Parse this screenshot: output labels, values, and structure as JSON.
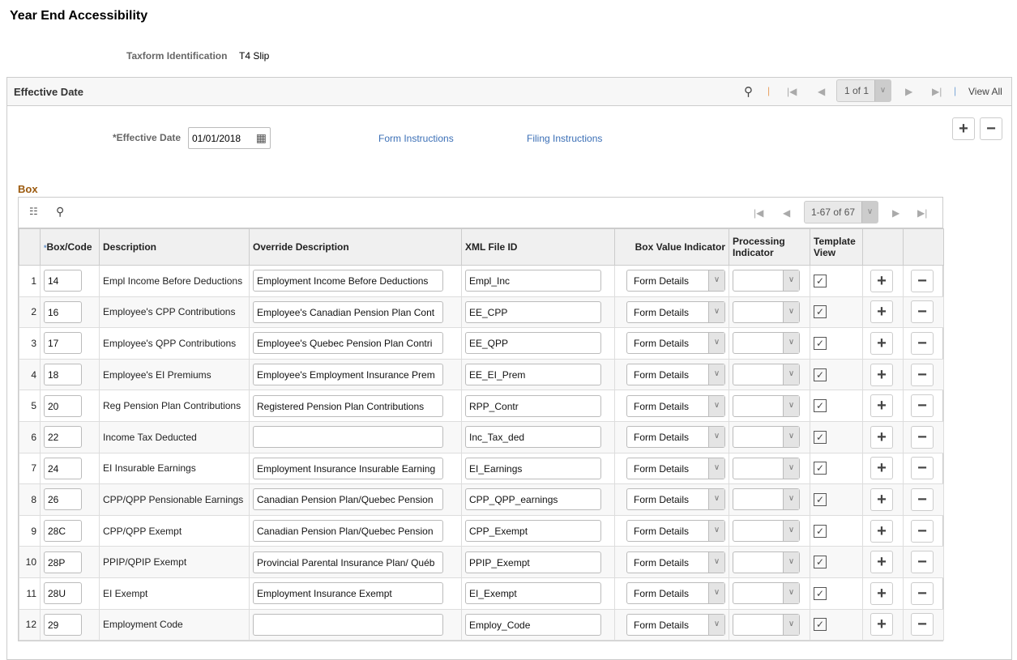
{
  "page": {
    "title": "Year End Accessibility",
    "taxform_label": "Taxform Identification",
    "taxform_value": "T4 Slip"
  },
  "effdate": {
    "header": "Effective Date",
    "pager": "1 of 1",
    "view_all": "View All",
    "label": "*Effective Date",
    "value": "01/01/2018",
    "form_instructions": "Form Instructions",
    "filing_instructions": "Filing Instructions"
  },
  "box": {
    "title": "Box",
    "pager": "1-67 of 67",
    "columns": [
      "*",
      "Box/Code",
      "Description",
      "Override Description",
      "XML File ID",
      "Box Value Indicator",
      "Processing Indicator",
      "Template View"
    ],
    "rows": [
      {
        "n": "1",
        "code": "14",
        "desc": "Empl Income Before Deductions",
        "override": "Employment Income Before Deductions",
        "xml": "Empl_Inc",
        "bvi": "Form Details",
        "proc": "",
        "tv": true
      },
      {
        "n": "2",
        "code": "16",
        "desc": "Employee's CPP Contributions",
        "override": "Employee's Canadian Pension Plan Cont",
        "xml": "EE_CPP",
        "bvi": "Form Details",
        "proc": "",
        "tv": true
      },
      {
        "n": "3",
        "code": "17",
        "desc": "Employee's QPP Contributions",
        "override": "Employee's Quebec Pension Plan  Contri",
        "xml": "EE_QPP",
        "bvi": "Form Details",
        "proc": "",
        "tv": true
      },
      {
        "n": "4",
        "code": "18",
        "desc": "Employee's EI Premiums",
        "override": "Employee's Employment Insurance Prem",
        "xml": "EE_EI_Prem",
        "bvi": "Form Details",
        "proc": "",
        "tv": true
      },
      {
        "n": "5",
        "code": "20",
        "desc": "Reg Pension Plan Contributions",
        "override": "Registered Pension Plan Contributions",
        "xml": "RPP_Contr",
        "bvi": "Form Details",
        "proc": "",
        "tv": true
      },
      {
        "n": "6",
        "code": "22",
        "desc": "Income Tax Deducted",
        "override": "",
        "xml": "Inc_Tax_ded",
        "bvi": "Form Details",
        "proc": "",
        "tv": true
      },
      {
        "n": "7",
        "code": "24",
        "desc": "EI Insurable Earnings",
        "override": "Employment Insurance Insurable Earning",
        "xml": "EI_Earnings",
        "bvi": "Form Details",
        "proc": "",
        "tv": true
      },
      {
        "n": "8",
        "code": "26",
        "desc": "CPP/QPP Pensionable Earnings",
        "override": "Canadian Pension Plan/Quebec Pension",
        "xml": "CPP_QPP_earnings",
        "bvi": "Form Details",
        "proc": "",
        "tv": true
      },
      {
        "n": "9",
        "code": "28C",
        "desc": "CPP/QPP Exempt",
        "override": "Canadian Pension Plan/Quebec Pension",
        "xml": "CPP_Exempt",
        "bvi": "Form Details",
        "proc": "",
        "tv": true
      },
      {
        "n": "10",
        "code": "28P",
        "desc": "PPIP/QPIP Exempt",
        "override": "Provincial  Parental Insurance Plan/ Québ",
        "xml": "PPIP_Exempt",
        "bvi": "Form Details",
        "proc": "",
        "tv": true
      },
      {
        "n": "11",
        "code": "28U",
        "desc": "EI Exempt",
        "override": "Employment Insurance Exempt",
        "xml": "EI_Exempt",
        "bvi": "Form Details",
        "proc": "",
        "tv": true
      },
      {
        "n": "12",
        "code": "29",
        "desc": "Employment Code",
        "override": "",
        "xml": "Employ_Code",
        "bvi": "Form Details",
        "proc": "",
        "tv": true
      }
    ]
  },
  "colors": {
    "link": "#3b6fb6",
    "box_title": "#9c5a0e"
  }
}
